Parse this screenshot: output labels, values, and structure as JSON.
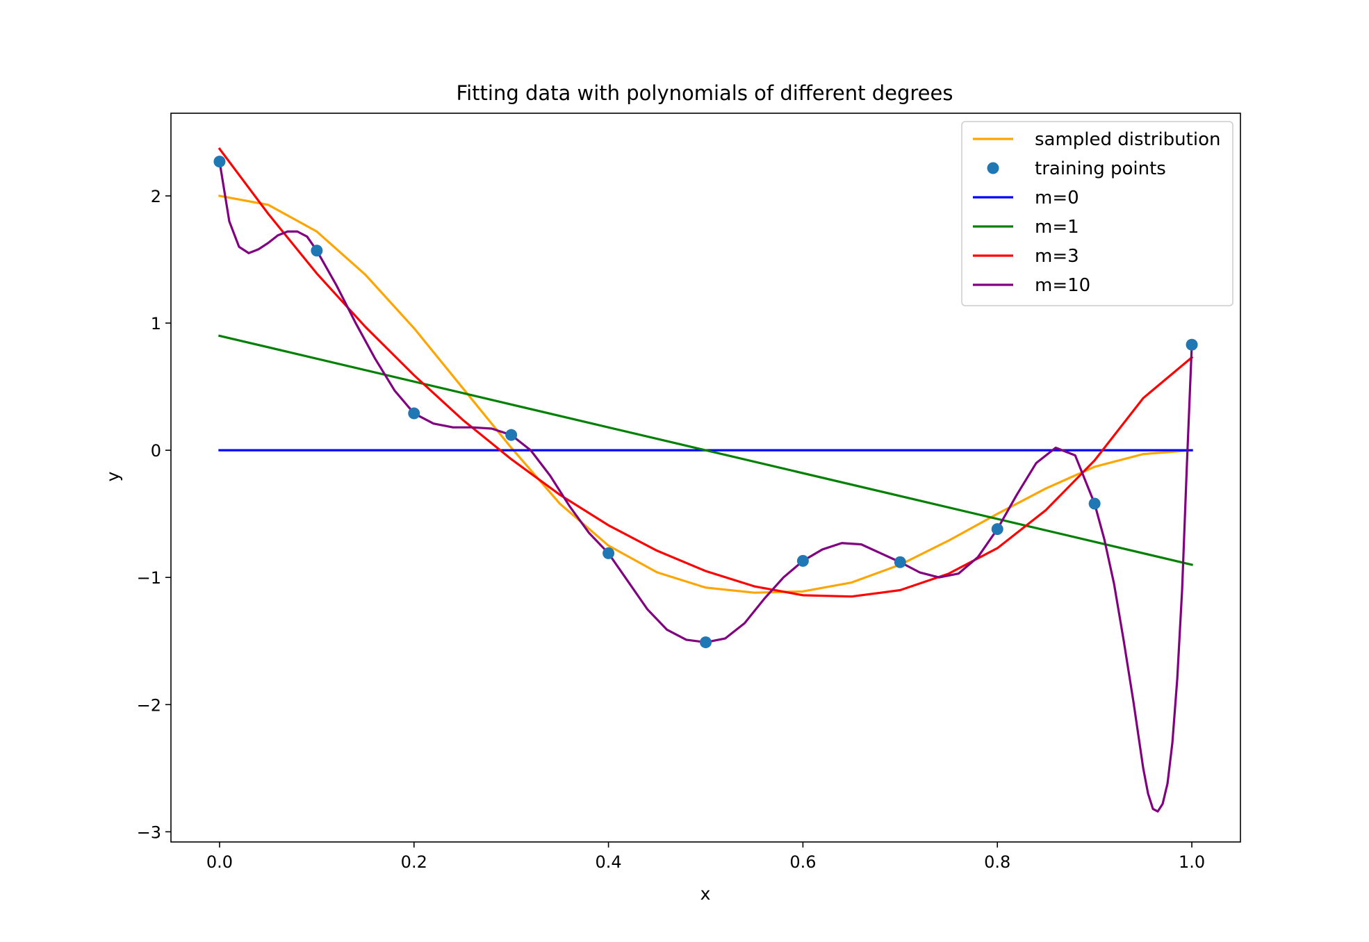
{
  "chart_data": {
    "type": "line",
    "title": "Fitting data with polynomials of different degrees",
    "xlabel": "x",
    "ylabel": "y",
    "xlim": [
      -0.05,
      1.05
    ],
    "ylim": [
      -3.08,
      2.65
    ],
    "x_ticks": [
      0.0,
      0.2,
      0.4,
      0.6,
      0.8,
      1.0
    ],
    "x_tick_labels": [
      "0.0",
      "0.2",
      "0.4",
      "0.6",
      "0.8",
      "1.0"
    ],
    "y_ticks": [
      -3,
      -2,
      -1,
      0,
      1,
      2
    ],
    "y_tick_labels": [
      "−3",
      "−2",
      "−1",
      "0",
      "1",
      "2"
    ],
    "grid": false,
    "legend_position": "upper right",
    "series": [
      {
        "name": "sampled distribution",
        "kind": "line",
        "color": "#ffa500",
        "x": [
          0.0,
          0.05,
          0.1,
          0.15,
          0.2,
          0.25,
          0.3,
          0.35,
          0.4,
          0.45,
          0.5,
          0.55,
          0.6,
          0.65,
          0.7,
          0.75,
          0.8,
          0.85,
          0.9,
          0.95,
          1.0
        ],
        "y": [
          2.0,
          1.93,
          1.72,
          1.38,
          0.96,
          0.49,
          0.02,
          -0.42,
          -0.75,
          -0.96,
          -1.08,
          -1.12,
          -1.11,
          -1.04,
          -0.9,
          -0.71,
          -0.5,
          -0.3,
          -0.13,
          -0.03,
          0.0
        ]
      },
      {
        "name": "training points",
        "kind": "scatter",
        "color": "#1f77b4",
        "x": [
          0.0,
          0.1,
          0.2,
          0.3,
          0.4,
          0.5,
          0.6,
          0.7,
          0.8,
          0.9,
          1.0
        ],
        "y": [
          2.27,
          1.57,
          0.29,
          0.12,
          -0.81,
          -1.51,
          -0.87,
          -0.88,
          -0.62,
          -0.42,
          0.83
        ]
      },
      {
        "name": "m=0",
        "kind": "line",
        "color": "#0000ff",
        "x": [
          0.0,
          1.0
        ],
        "y": [
          0.0,
          0.0
        ]
      },
      {
        "name": "m=1",
        "kind": "line",
        "color": "#008000",
        "x": [
          0.0,
          1.0
        ],
        "y": [
          0.9,
          -0.9
        ]
      },
      {
        "name": "m=3",
        "kind": "line",
        "color": "#ff0000",
        "x": [
          0.0,
          0.05,
          0.1,
          0.15,
          0.2,
          0.25,
          0.3,
          0.35,
          0.4,
          0.45,
          0.5,
          0.55,
          0.6,
          0.65,
          0.7,
          0.75,
          0.8,
          0.85,
          0.9,
          0.95,
          1.0
        ],
        "y": [
          2.37,
          1.86,
          1.39,
          0.97,
          0.59,
          0.24,
          -0.07,
          -0.35,
          -0.59,
          -0.79,
          -0.95,
          -1.07,
          -1.14,
          -1.15,
          -1.1,
          -0.97,
          -0.77,
          -0.47,
          -0.08,
          0.41,
          0.73
        ]
      },
      {
        "name": "m=10",
        "kind": "line",
        "color": "#800080",
        "x": [
          0.0,
          0.01,
          0.02,
          0.03,
          0.04,
          0.05,
          0.06,
          0.07,
          0.08,
          0.09,
          0.1,
          0.12,
          0.14,
          0.16,
          0.18,
          0.2,
          0.22,
          0.24,
          0.26,
          0.28,
          0.3,
          0.32,
          0.34,
          0.36,
          0.38,
          0.4,
          0.42,
          0.44,
          0.46,
          0.48,
          0.5,
          0.52,
          0.54,
          0.56,
          0.58,
          0.6,
          0.62,
          0.64,
          0.66,
          0.68,
          0.7,
          0.72,
          0.74,
          0.76,
          0.78,
          0.8,
          0.82,
          0.84,
          0.86,
          0.88,
          0.9,
          0.91,
          0.92,
          0.93,
          0.94,
          0.95,
          0.955,
          0.96,
          0.965,
          0.97,
          0.975,
          0.98,
          0.985,
          0.99,
          0.995,
          1.0
        ],
        "y": [
          2.27,
          1.8,
          1.6,
          1.55,
          1.58,
          1.63,
          1.69,
          1.72,
          1.72,
          1.68,
          1.57,
          1.3,
          1.0,
          0.72,
          0.47,
          0.29,
          0.21,
          0.18,
          0.18,
          0.17,
          0.12,
          0.0,
          -0.2,
          -0.44,
          -0.65,
          -0.81,
          -1.03,
          -1.25,
          -1.41,
          -1.49,
          -1.51,
          -1.48,
          -1.36,
          -1.17,
          -1.0,
          -0.87,
          -0.78,
          -0.73,
          -0.74,
          -0.81,
          -0.88,
          -0.96,
          -1.0,
          -0.97,
          -0.84,
          -0.62,
          -0.35,
          -0.1,
          0.02,
          -0.04,
          -0.42,
          -0.7,
          -1.05,
          -1.5,
          -1.98,
          -2.5,
          -2.7,
          -2.82,
          -2.84,
          -2.78,
          -2.62,
          -2.3,
          -1.8,
          -1.1,
          -0.1,
          0.83
        ]
      }
    ]
  }
}
